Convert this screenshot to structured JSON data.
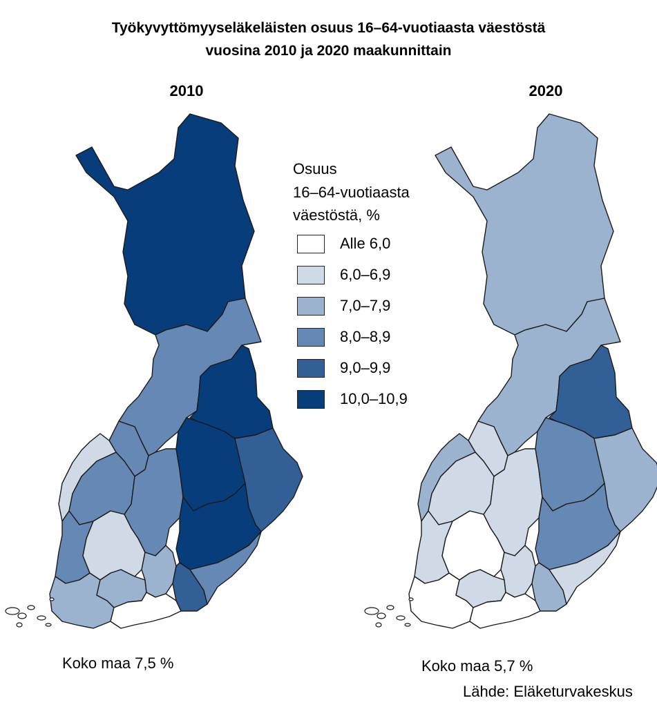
{
  "title_line1": "Työkyvyttömyyseläkeläisten osuus 16–64-vuotiaasta väestöstä",
  "title_line2": "vuosina 2010 ja 2020 maakunnittain",
  "maps": [
    {
      "year": "2010",
      "total_label": "Koko maa 7,5 %"
    },
    {
      "year": "2020",
      "total_label": "Koko maa 5,7 %"
    }
  ],
  "legend": {
    "title_lines": [
      "Osuus",
      "16–64-vuotiaasta",
      "väestöstä, %"
    ],
    "items": [
      {
        "label": "Alle 6,0",
        "color": "#ffffff"
      },
      {
        "label": "6,0–6,9",
        "color": "#cfdae6"
      },
      {
        "label": "7,0–7,9",
        "color": "#9cb3cf"
      },
      {
        "label": "8,0–8,9",
        "color": "#6688b4"
      },
      {
        "label": "9,0–9,9",
        "color": "#325f95"
      },
      {
        "label": "10,0–10,9",
        "color": "#073d7a"
      }
    ]
  },
  "regions": [
    {
      "name": "Lappi",
      "class_2010": "10,0–10,9",
      "class_2020": "7,0–7,9"
    },
    {
      "name": "Pohjois-Pohjanmaa",
      "class_2010": "8,0–8,9",
      "class_2020": "7,0–7,9"
    },
    {
      "name": "Kainuu",
      "class_2010": "10,0–10,9",
      "class_2020": "9,0–9,9"
    },
    {
      "name": "Keski-Pohjanmaa",
      "class_2010": "8,0–8,9",
      "class_2020": "6,0–6,9"
    },
    {
      "name": "Pohjanmaa",
      "class_2010": "6,0–6,9",
      "class_2020": "7,0–7,9"
    },
    {
      "name": "Etelä-Pohjanmaa",
      "class_2010": "8,0–8,9",
      "class_2020": "6,0–6,9"
    },
    {
      "name": "Keski-Suomi",
      "class_2010": "8,0–8,9",
      "class_2020": "6,0–6,9"
    },
    {
      "name": "Pohjois-Savo",
      "class_2010": "10,0–10,9",
      "class_2020": "8,0–8,9"
    },
    {
      "name": "Pohjois-Karjala",
      "class_2010": "9,0–9,9",
      "class_2020": "7,0–7,9"
    },
    {
      "name": "Etelä-Savo",
      "class_2010": "10,0–10,9",
      "class_2020": "8,0–8,9"
    },
    {
      "name": "Satakunta",
      "class_2010": "8,0–8,9",
      "class_2020": "6,0–6,9"
    },
    {
      "name": "Pirkanmaa",
      "class_2010": "6,0–6,9",
      "class_2020": "Alle 6,0"
    },
    {
      "name": "Varsinais-Suomi",
      "class_2010": "7,0–7,9",
      "class_2020": "Alle 6,0"
    },
    {
      "name": "Kanta-Häme",
      "class_2010": "7,0–7,9",
      "class_2020": "6,0–6,9"
    },
    {
      "name": "Päijät-Häme",
      "class_2010": "7,0–7,9",
      "class_2020": "6,0–6,9"
    },
    {
      "name": "Uusimaa",
      "class_2010": "Alle 6,0",
      "class_2020": "Alle 6,0"
    },
    {
      "name": "Kymenlaakso",
      "class_2010": "9,0–9,9",
      "class_2020": "7,0–7,9"
    },
    {
      "name": "Etelä-Karjala",
      "class_2010": "8,0–8,9",
      "class_2020": "6,0–6,9"
    }
  ],
  "source": "Lähde: Eläketurvakeskus"
}
